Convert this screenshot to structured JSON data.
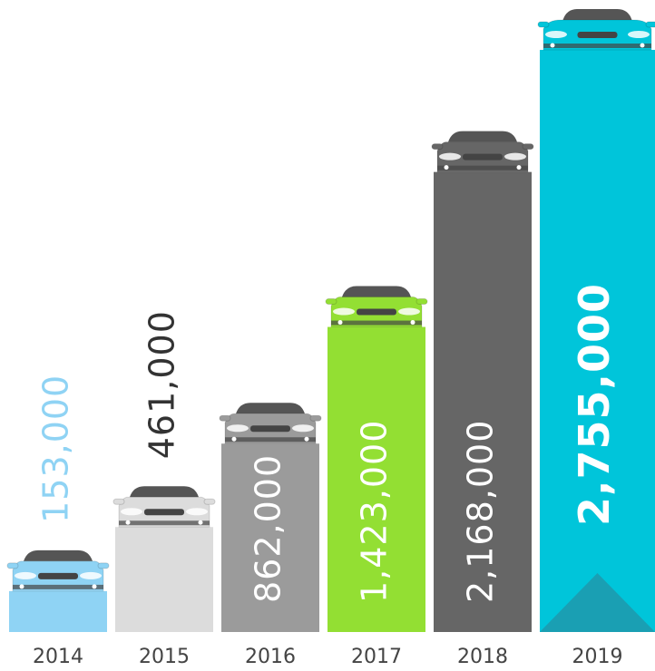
{
  "chart_data": {
    "type": "bar",
    "categories": [
      "2014",
      "2015",
      "2016",
      "2017",
      "2018",
      "2019"
    ],
    "values": [
      153000,
      461000,
      862000,
      1423000,
      2168000,
      2755000
    ],
    "value_labels": [
      "153,000",
      "461,000",
      "862,000",
      "1,423,000",
      "2,168,000",
      "2,755,000"
    ],
    "colors": [
      "#8fd3f4",
      "#dcdcdc",
      "#9b9b9b",
      "#93df33",
      "#666666",
      "#00c5da"
    ],
    "label_colors": [
      "#8fd3f4",
      "#333333",
      "#ffffff",
      "#ffffff",
      "#ffffff",
      "#ffffff"
    ],
    "highlight_index": 5
  }
}
